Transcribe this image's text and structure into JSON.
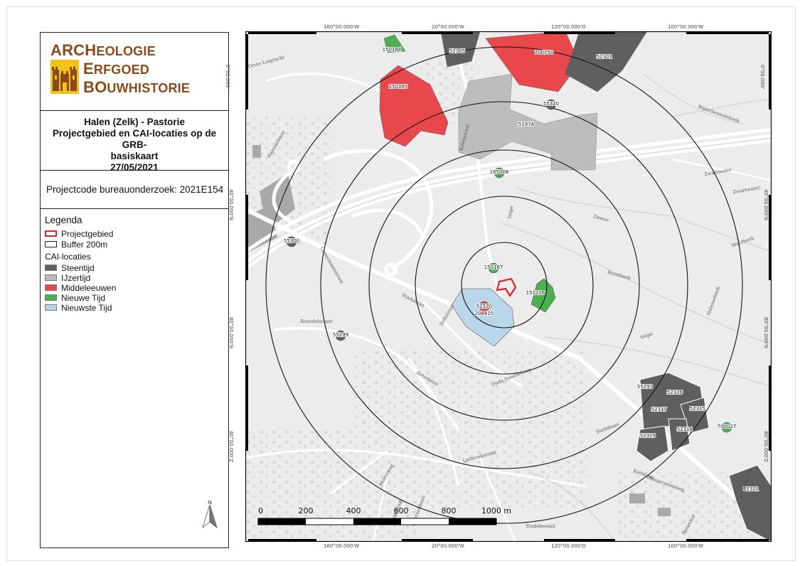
{
  "logo": {
    "line1_cap": "ARCH",
    "line1_rest": "EOLOGIE",
    "line2_cap": "E",
    "line2_rest": "RFGOED",
    "line3_cap": "BO",
    "line3_rest": "UWHISTORIE"
  },
  "title": {
    "line1": "Halen (Zelk) - Pastorie",
    "line2": "Projectgebied en CAI-locaties op de GRB-",
    "line3": "basiskaart",
    "date": "27/05/2021"
  },
  "project_code": "Projectcode bureauonderzoek: 2021E154",
  "legend": {
    "title": "Legenda",
    "projectgebied": "Projectgebied",
    "buffer": "Buffer 200m",
    "cai_heading": "CAI-locaties",
    "items": [
      {
        "label": "Steentijd",
        "color": "#5f5f5f"
      },
      {
        "label": "IJzertijd",
        "color": "#bdbdbd"
      },
      {
        "label": "Middeleeuwen",
        "color": "#e8474c"
      },
      {
        "label": "Nieuwe Tijd",
        "color": "#4caf50"
      },
      {
        "label": "Nieuwste Tijd",
        "color": "#b9d6ea"
      }
    ]
  },
  "north_label": "N",
  "map": {
    "top_coords": [
      "160°00.000'W",
      "20°00.000'W",
      "120°00.000'O",
      "100°00.000'W"
    ],
    "bottom_coords": [
      "160°00.000'W",
      "20°00.000'W",
      "120°00.000'O",
      "100°00.000'W"
    ],
    "left_coords": [
      "0°00.000'",
      "40°00.000'N",
      "80°00.000'N",
      "60°00.000'Z"
    ],
    "right_coords": [
      "0°00.000'",
      "40°00.000'N",
      "80°00.000'N",
      "60°00.000'Z"
    ],
    "site_labels": [
      "150184",
      "52305",
      "700750",
      "52301",
      "150185",
      "55320",
      "51974",
      "165008",
      "55300",
      "150187",
      "151216",
      "52570",
      "208615",
      "55299",
      "55293",
      "52316",
      "52317",
      "52315",
      "52318",
      "52319",
      "700027",
      "52321"
    ],
    "street_labels": [
      "Halensebaan",
      "Kolenstraat",
      "Capucienenstraat",
      "Stadsbaan",
      "Zelkstraat",
      "Rozedelstraat",
      "Betsebaan",
      "Oude Diestsebaan",
      "Liebroekstraat",
      "Molenweg",
      "Zelkstraat",
      "Liebroekbaan",
      "Stadsbaan",
      "Diestersteenweg",
      "Zwartwater",
      "Zwartwater",
      "Demer",
      "Velpe",
      "Brestbeek",
      "Waterbeemdebeek",
      "Grote Leigracht",
      "Stadebeemd",
      "Stationsbaan",
      "Kettelaan",
      "Spaanhof",
      "Velpe",
      "Halensebeek",
      "Meerbeek"
    ],
    "scale_labels": [
      "0",
      "200",
      "400",
      "600",
      "800",
      "1000 m"
    ]
  }
}
